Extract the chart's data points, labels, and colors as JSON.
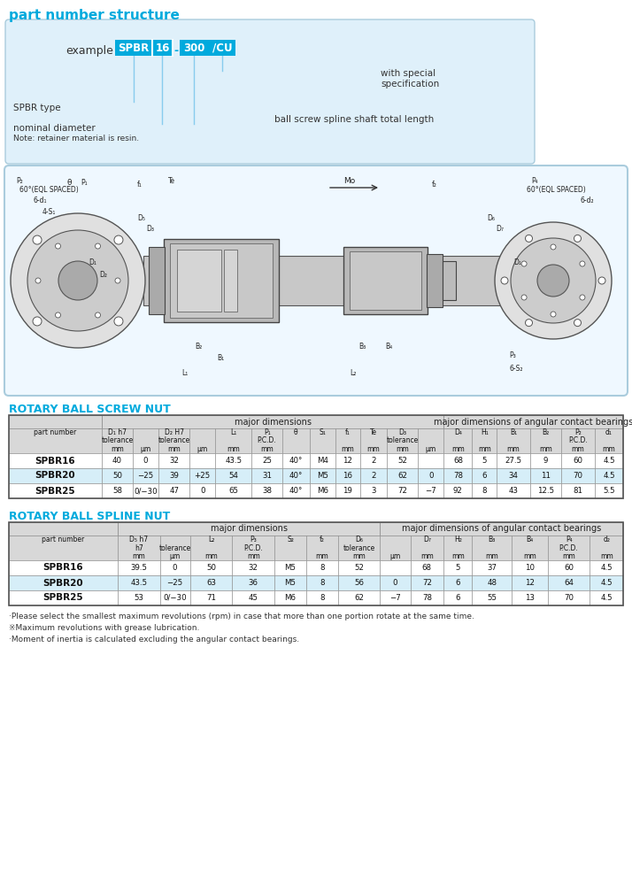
{
  "title": "part number structure",
  "cyan": "#00AADD",
  "light_blue_box": "#DFF0FA",
  "light_blue_row": "#D6EEF8",
  "header_gray": "#D8D8D8",
  "white": "#FFFFFF",
  "dark": "#222222",
  "border": "#888888",
  "screw_table_title": "ROTARY BALL SCREW NUT",
  "spline_table_title": "ROTARY BALL SPLINE NUT",
  "footnotes": [
    "·Please select the smallest maximum revolutions (rpm) in case that more than one portion rotate at the same time.",
    "※Maximum revolutions with grease lubrication.",
    "·Moment of inertia is calculated excluding the angular contact bearings."
  ],
  "screw_headers": [
    [
      "part number",
      "",
      ""
    ],
    [
      "D₁ h7",
      "tolerance",
      "mm"
    ],
    [
      "",
      "",
      "μm"
    ],
    [
      "D₂ H7",
      "tolerance",
      "mm"
    ],
    [
      "",
      "",
      "μm"
    ],
    [
      "L₁",
      "",
      "mm"
    ],
    [
      "P₁",
      "P.C.D.",
      "mm"
    ],
    [
      "θ",
      "",
      ""
    ],
    [
      "S₁",
      "",
      ""
    ],
    [
      "f₁",
      "",
      "mm"
    ],
    [
      "Te",
      "",
      "mm"
    ],
    [
      "D₃",
      "tolerance",
      "mm"
    ],
    [
      "",
      "",
      "μm"
    ],
    [
      "D₄",
      "",
      "mm"
    ],
    [
      "H₁",
      "",
      "mm"
    ],
    [
      "B₁",
      "",
      "mm"
    ],
    [
      "B₂",
      "",
      "mm"
    ],
    [
      "P₂",
      "P.C.D.",
      "mm"
    ],
    [
      "d₁",
      "",
      "mm"
    ]
  ],
  "screw_rows": [
    [
      "SPBR16",
      "40",
      "0",
      "32",
      "",
      "43.5",
      "25",
      "40°",
      "M4",
      "12",
      "2",
      "52",
      "",
      "68",
      "5",
      "27.5",
      "9",
      "60",
      "4.5"
    ],
    [
      "SPBR20",
      "50",
      "−25",
      "39",
      "+25",
      "54",
      "31",
      "40°",
      "M5",
      "16",
      "2",
      "62",
      "0",
      "78",
      "6",
      "34",
      "11",
      "70",
      "4.5"
    ],
    [
      "SPBR25",
      "58",
      "0/−30",
      "47",
      "0",
      "65",
      "38",
      "40°",
      "M6",
      "19",
      "3",
      "72",
      "−7",
      "92",
      "8",
      "43",
      "12.5",
      "81",
      "5.5"
    ]
  ],
  "spline_headers": [
    [
      "part number",
      "",
      ""
    ],
    [
      "D₅ h7",
      "h7",
      "mm"
    ],
    [
      "",
      "tolerance",
      "μm"
    ],
    [
      "L₂",
      "",
      "mm"
    ],
    [
      "P₃",
      "P.C.D.",
      "mm"
    ],
    [
      "S₂",
      "",
      ""
    ],
    [
      "f₂",
      "",
      "mm"
    ],
    [
      "D₆",
      "tolerance",
      "mm"
    ],
    [
      "",
      "",
      "μm"
    ],
    [
      "D₇",
      "",
      "mm"
    ],
    [
      "H₂",
      "",
      "mm"
    ],
    [
      "B₃",
      "",
      "mm"
    ],
    [
      "B₄",
      "",
      "mm"
    ],
    [
      "P₄",
      "P.C.D.",
      "mm"
    ],
    [
      "d₂",
      "",
      "mm"
    ]
  ],
  "spline_rows": [
    [
      "SPBR16",
      "39.5",
      "0",
      "50",
      "32",
      "M5",
      "8",
      "52",
      "",
      "68",
      "5",
      "37",
      "10",
      "60",
      "4.5"
    ],
    [
      "SPBR20",
      "43.5",
      "−25",
      "63",
      "36",
      "M5",
      "8",
      "56",
      "0",
      "72",
      "6",
      "48",
      "12",
      "64",
      "4.5"
    ],
    [
      "SPBR25",
      "53",
      "0/−30",
      "71",
      "45",
      "M6",
      "8",
      "62",
      "−7",
      "78",
      "6",
      "55",
      "13",
      "70",
      "4.5"
    ]
  ]
}
